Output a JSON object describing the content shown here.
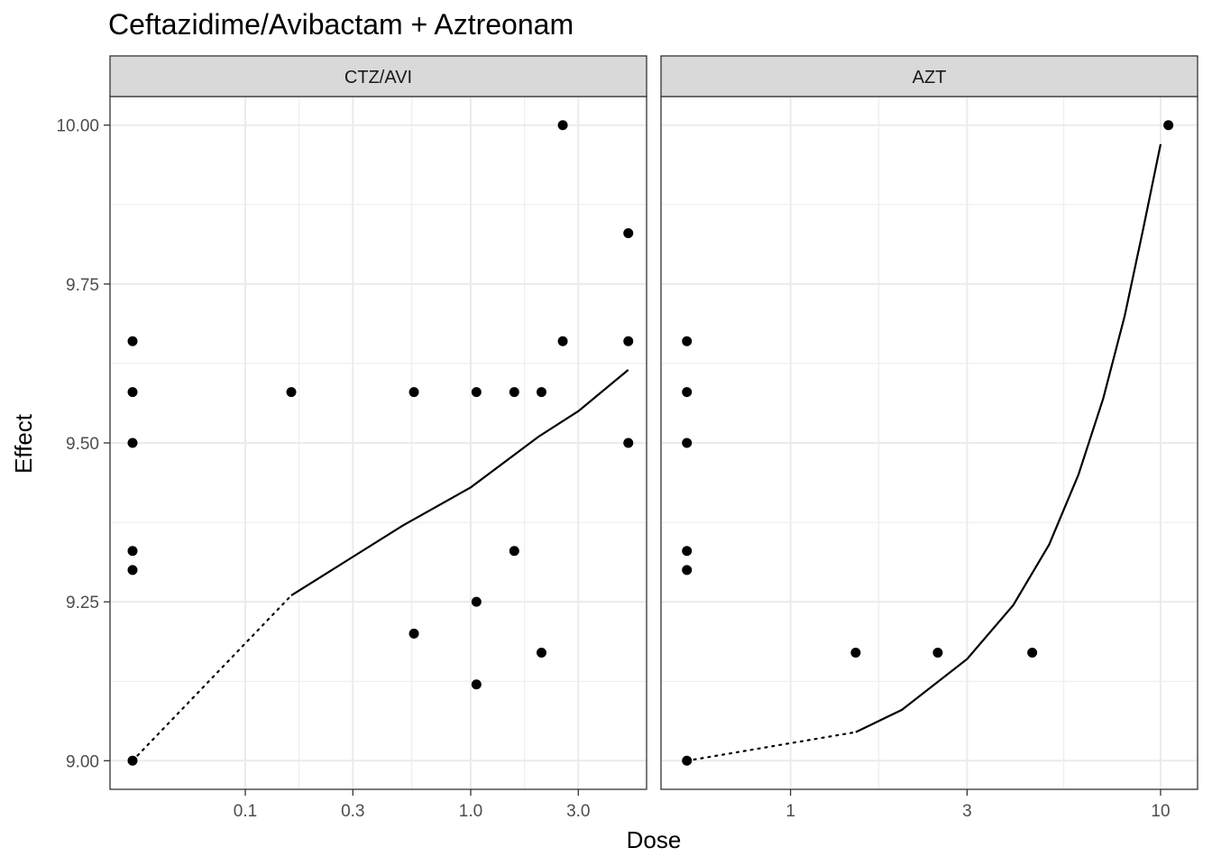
{
  "chart_data": {
    "type": "scatter",
    "title": "Ceftazidime/Avibactam + Aztreonam",
    "xlabel": "Dose",
    "ylabel": "Effect",
    "x_scale": "log10",
    "y_range": [
      8.955,
      10.045
    ],
    "y_ticks": [
      "9.00",
      "9.25",
      "9.50",
      "9.75",
      "10.00"
    ],
    "y_tick_values": [
      9.0,
      9.25,
      9.5,
      9.75,
      10.0
    ],
    "grid": true,
    "colors": {
      "points": "#000000",
      "fit_line": "#000000",
      "strip_fill": "#d9d9d9",
      "grid": "#ebebeb",
      "border": "#333333"
    },
    "panels": [
      {
        "strip_label": "CTZ/AVI",
        "x_range_log10": [
          -1.6,
          0.78
        ],
        "x_ticks": [
          "0.1",
          "0.3",
          "1.0",
          "3.0"
        ],
        "x_tick_values": [
          0.1,
          0.3,
          1.0,
          3.0
        ],
        "zero_dose_position_log10": -1.5,
        "points": [
          {
            "x": 0,
            "y": 9.0
          },
          {
            "x": 0,
            "y": 9.3
          },
          {
            "x": 0,
            "y": 9.33
          },
          {
            "x": 0,
            "y": 9.5
          },
          {
            "x": 0,
            "y": 9.58
          },
          {
            "x": 0,
            "y": 9.66
          },
          {
            "x": 0.16,
            "y": 9.58
          },
          {
            "x": 0.56,
            "y": 9.58
          },
          {
            "x": 0.56,
            "y": 9.2
          },
          {
            "x": 1.06,
            "y": 9.58
          },
          {
            "x": 1.06,
            "y": 9.25
          },
          {
            "x": 1.06,
            "y": 9.12
          },
          {
            "x": 1.56,
            "y": 9.58
          },
          {
            "x": 1.56,
            "y": 9.33
          },
          {
            "x": 2.06,
            "y": 9.58
          },
          {
            "x": 2.06,
            "y": 9.17
          },
          {
            "x": 2.56,
            "y": 10.0
          },
          {
            "x": 2.56,
            "y": 9.66
          },
          {
            "x": 5.0,
            "y": 9.83
          },
          {
            "x": 5.0,
            "y": 9.66
          },
          {
            "x": 5.0,
            "y": 9.5
          }
        ],
        "fit_dotted": [
          [
            0,
            9.0
          ],
          [
            0.16,
            9.26
          ]
        ],
        "fit_solid": [
          [
            0.16,
            9.26
          ],
          [
            0.5,
            9.37
          ],
          [
            1.0,
            9.43
          ],
          [
            2.0,
            9.51
          ],
          [
            3.0,
            9.55
          ],
          [
            5.0,
            9.615
          ]
        ]
      },
      {
        "strip_label": "AZT",
        "x_range_log10": [
          -0.35,
          1.1
        ],
        "x_ticks": [
          "1",
          "3",
          "10"
        ],
        "x_tick_values": [
          1,
          3,
          10
        ],
        "zero_dose_position_log10": -0.28,
        "points": [
          {
            "x": 0,
            "y": 9.0
          },
          {
            "x": 0,
            "y": 9.3
          },
          {
            "x": 0,
            "y": 9.33
          },
          {
            "x": 0,
            "y": 9.5
          },
          {
            "x": 0,
            "y": 9.58
          },
          {
            "x": 0,
            "y": 9.66
          },
          {
            "x": 1.5,
            "y": 9.17
          },
          {
            "x": 2.5,
            "y": 9.17
          },
          {
            "x": 4.5,
            "y": 9.17
          },
          {
            "x": 10.5,
            "y": 10.0
          }
        ],
        "fit_dotted": [
          [
            0,
            9.0
          ],
          [
            1.5,
            9.045
          ]
        ],
        "fit_solid": [
          [
            1.5,
            9.045
          ],
          [
            2.0,
            9.08
          ],
          [
            3.0,
            9.16
          ],
          [
            4.0,
            9.245
          ],
          [
            5.0,
            9.34
          ],
          [
            6.0,
            9.45
          ],
          [
            7.0,
            9.57
          ],
          [
            8.0,
            9.7
          ],
          [
            9.0,
            9.84
          ],
          [
            10.0,
            9.97
          ]
        ]
      }
    ]
  }
}
